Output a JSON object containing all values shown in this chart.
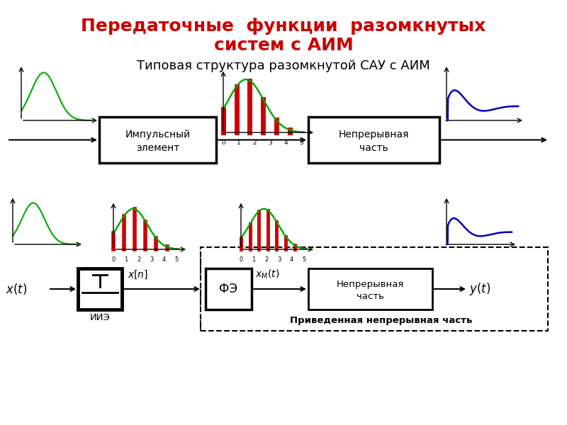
{
  "title_line1": "Передаточные  функции  разомкнутых",
  "title_line2": "систем с АИМ",
  "subtitle": "Типовая структура разомкнутой САУ с АИМ",
  "title_color": "#cc0000",
  "title_fontsize": 18,
  "subtitle_fontsize": 13,
  "bg_color": "#ffffff",
  "green_color": "#00aa00",
  "red_color": "#cc0000",
  "blue_color": "#0000bb",
  "black_color": "#000000"
}
